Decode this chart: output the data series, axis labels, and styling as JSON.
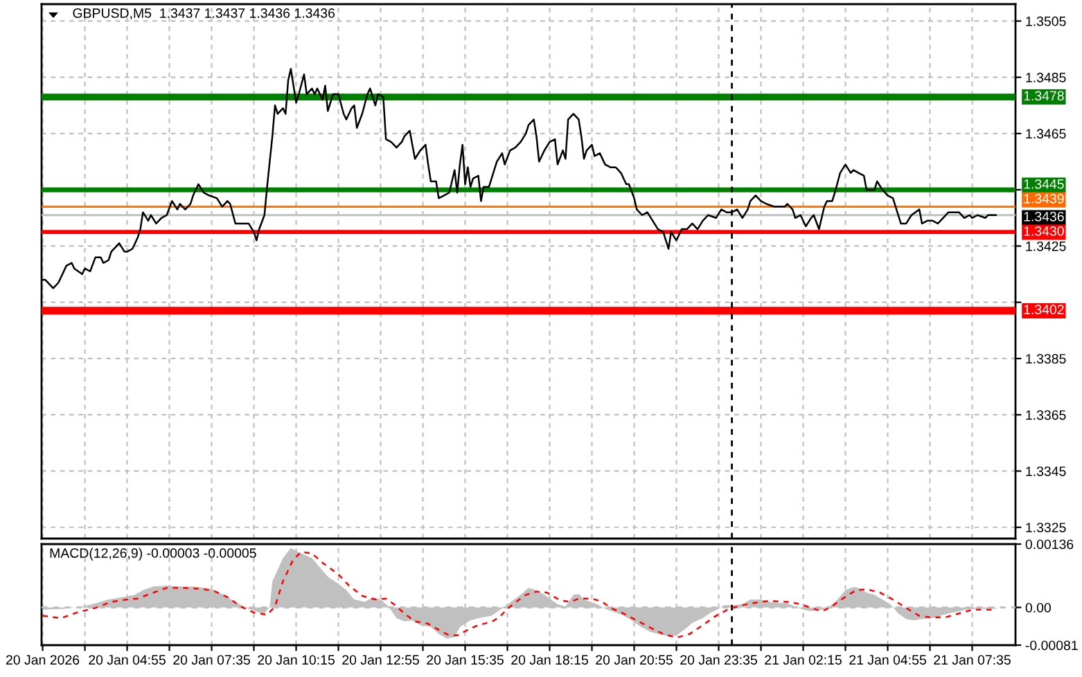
{
  "chart_data": [
    {
      "type": "line",
      "title": "GBPUSD,M5  1.3437 1.3437 1.3436 1.3436",
      "color": "#000000",
      "x": [
        "2026-01-20T02:15",
        "2026-01-20T02:20",
        "2026-01-20T02:35",
        "2026-01-20T02:45",
        "2026-01-20T03:00",
        "2026-01-20T03:10",
        "2026-01-20T03:15",
        "2026-01-20T03:30",
        "2026-01-20T03:35",
        "2026-01-20T03:45",
        "2026-01-20T03:55",
        "2026-01-20T04:05",
        "2026-01-20T04:10",
        "2026-01-20T04:20",
        "2026-01-20T04:25",
        "2026-01-20T04:40",
        "2026-01-20T04:50",
        "2026-01-20T04:55",
        "2026-01-20T05:05",
        "2026-01-20T05:15",
        "2026-01-20T05:20",
        "2026-01-20T05:25",
        "2026-01-20T05:35",
        "2026-01-20T05:40",
        "2026-01-20T05:50",
        "2026-01-20T06:00",
        "2026-01-20T06:10",
        "2026-01-20T06:20",
        "2026-01-20T06:30",
        "2026-01-20T06:35",
        "2026-01-20T06:45",
        "2026-01-20T06:55",
        "2026-01-20T07:00",
        "2026-01-20T07:10",
        "2026-01-20T07:20",
        "2026-01-20T07:30",
        "2026-01-20T07:45",
        "2026-01-20T07:55",
        "2026-01-20T08:05",
        "2026-01-20T08:10",
        "2026-01-20T08:20",
        "2026-01-20T08:30",
        "2026-01-20T08:45",
        "2026-01-20T08:55",
        "2026-01-20T09:00",
        "2026-01-20T09:05",
        "2026-01-20T09:15",
        "2026-01-20T09:20",
        "2026-01-20T09:30",
        "2026-01-20T09:35",
        "2026-01-20T09:40",
        "2026-01-20T09:50",
        "2026-01-20T09:55",
        "2026-01-20T10:00",
        "2026-01-20T10:05",
        "2026-01-20T10:15",
        "2026-01-20T10:20",
        "2026-01-20T10:30",
        "2026-01-20T10:35",
        "2026-01-20T10:45",
        "2026-01-20T10:50",
        "2026-01-20T10:55",
        "2026-01-20T11:05",
        "2026-01-20T11:10",
        "2026-01-20T11:15",
        "2026-01-20T11:20",
        "2026-01-20T11:25",
        "2026-01-20T11:35",
        "2026-01-20T11:45",
        "2026-01-20T11:50",
        "2026-01-20T12:00",
        "2026-01-20T12:05",
        "2026-01-20T12:10",
        "2026-01-20T12:20",
        "2026-01-20T12:30",
        "2026-01-20T12:35",
        "2026-01-20T12:45",
        "2026-01-20T12:50",
        "2026-01-20T13:00",
        "2026-01-20T13:05",
        "2026-01-20T13:15",
        "2026-01-20T13:25",
        "2026-01-20T13:35",
        "2026-01-20T13:40",
        "2026-01-20T13:50",
        "2026-01-20T13:55",
        "2026-01-20T14:00",
        "2026-01-20T14:10",
        "2026-01-20T14:20",
        "2026-01-20T14:25",
        "2026-01-20T14:30",
        "2026-01-20T14:40",
        "2026-01-20T14:45",
        "2026-01-20T14:55",
        "2026-01-20T15:05",
        "2026-01-20T15:15",
        "2026-01-20T15:20",
        "2026-01-20T15:25",
        "2026-01-20T15:30",
        "2026-01-20T15:35",
        "2026-01-20T15:40",
        "2026-01-20T15:45",
        "2026-01-20T15:50",
        "2026-01-20T16:00",
        "2026-01-20T16:05",
        "2026-01-20T16:10",
        "2026-01-20T16:20",
        "2026-01-20T16:30",
        "2026-01-20T16:35",
        "2026-01-20T16:45",
        "2026-01-20T16:50",
        "2026-01-20T17:00",
        "2026-01-20T17:10",
        "2026-01-20T17:20",
        "2026-01-20T17:30",
        "2026-01-20T17:35",
        "2026-01-20T17:45",
        "2026-01-20T17:50",
        "2026-01-20T17:55",
        "2026-01-20T18:05",
        "2026-01-20T18:15",
        "2026-01-20T18:25",
        "2026-01-20T18:30",
        "2026-01-20T18:40",
        "2026-01-20T18:45",
        "2026-01-20T18:50",
        "2026-01-20T19:00",
        "2026-01-20T19:10",
        "2026-01-20T19:15",
        "2026-01-20T19:20",
        "2026-01-20T19:25",
        "2026-01-20T19:35",
        "2026-01-20T19:40",
        "2026-01-20T19:50",
        "2026-01-20T20:00",
        "2026-01-20T20:10",
        "2026-01-20T20:20",
        "2026-01-20T20:30",
        "2026-01-20T20:40",
        "2026-01-20T20:45",
        "2026-01-20T20:55",
        "2026-01-20T21:00",
        "2026-01-20T21:10",
        "2026-01-20T21:20",
        "2026-01-20T21:30",
        "2026-01-20T21:40",
        "2026-01-20T21:50",
        "2026-01-20T22:00",
        "2026-01-20T22:05",
        "2026-01-20T22:15",
        "2026-01-20T22:25",
        "2026-01-20T22:35",
        "2026-01-20T22:45",
        "2026-01-20T22:55",
        "2026-01-20T23:05",
        "2026-01-20T23:15",
        "2026-01-20T23:30",
        "2026-01-20T23:40",
        "2026-01-20T23:50",
        "2026-01-21T00:00",
        "2026-01-21T00:10",
        "2026-01-21T00:20",
        "2026-01-21T00:30",
        "2026-01-21T00:35",
        "2026-01-21T00:45",
        "2026-01-21T00:55",
        "2026-01-21T01:05",
        "2026-01-21T01:20",
        "2026-01-21T01:40",
        "2026-01-21T01:45",
        "2026-01-21T01:55",
        "2026-01-21T02:00",
        "2026-01-21T02:10",
        "2026-01-21T02:20",
        "2026-01-21T02:30",
        "2026-01-21T02:35",
        "2026-01-21T02:45",
        "2026-01-21T02:55",
        "2026-01-21T03:00",
        "2026-01-21T03:10",
        "2026-01-21T03:15",
        "2026-01-21T03:25",
        "2026-01-21T03:35",
        "2026-01-21T03:45",
        "2026-01-21T03:50",
        "2026-01-21T04:00",
        "2026-01-21T04:10",
        "2026-01-21T04:15",
        "2026-01-21T04:30",
        "2026-01-21T04:35",
        "2026-01-21T04:45",
        "2026-01-21T04:55",
        "2026-01-21T05:05",
        "2026-01-21T05:10",
        "2026-01-21T05:20",
        "2026-01-21T05:30",
        "2026-01-21T05:40",
        "2026-01-21T05:55",
        "2026-01-21T06:00",
        "2026-01-21T06:10",
        "2026-01-21T06:20",
        "2026-01-21T06:30",
        "2026-01-21T06:40",
        "2026-01-21T06:50",
        "2026-01-21T07:05",
        "2026-01-21T07:10",
        "2026-01-21T07:20",
        "2026-01-21T07:30",
        "2026-01-21T07:35",
        "2026-01-21T07:45",
        "2026-01-21T08:00",
        "2026-01-21T08:05",
        "2026-01-21T08:15",
        "2026-01-21T08:20"
      ],
      "values": [
        1.3413,
        1.3413,
        1.341,
        1.3412,
        1.3418,
        1.3419,
        1.3417,
        1.3415,
        1.3417,
        1.3416,
        1.3421,
        1.3421,
        1.3419,
        1.342,
        1.3423,
        1.3426,
        1.3423,
        1.3423,
        1.3424,
        1.3428,
        1.3431,
        1.3437,
        1.3434,
        1.3436,
        1.3433,
        1.3435,
        1.3436,
        1.3441,
        1.3438,
        1.344,
        1.3438,
        1.344,
        1.3443,
        1.3447,
        1.3444,
        1.3443,
        1.3442,
        1.3439,
        1.3441,
        1.344,
        1.3433,
        1.3433,
        1.3433,
        1.343,
        1.3427,
        1.3431,
        1.3436,
        1.3446,
        1.3464,
        1.3475,
        1.3472,
        1.3474,
        1.3472,
        1.3484,
        1.3488,
        1.3476,
        1.3479,
        1.3486,
        1.3479,
        1.3481,
        1.3479,
        1.3481,
        1.3477,
        1.3482,
        1.3473,
        1.3476,
        1.3479,
        1.3479,
        1.3472,
        1.347,
        1.3474,
        1.3475,
        1.3467,
        1.3472,
        1.3479,
        1.3481,
        1.3475,
        1.3479,
        1.3478,
        1.3463,
        1.3462,
        1.346,
        1.3462,
        1.3464,
        1.3466,
        1.3461,
        1.3456,
        1.3459,
        1.3461,
        1.3454,
        1.3448,
        1.3448,
        1.3442,
        1.3443,
        1.3444,
        1.3452,
        1.3444,
        1.3454,
        1.3461,
        1.3447,
        1.3453,
        1.3446,
        1.3449,
        1.345,
        1.3441,
        1.3446,
        1.3446,
        1.3452,
        1.3455,
        1.3458,
        1.3454,
        1.3459,
        1.346,
        1.3462,
        1.3465,
        1.3468,
        1.347,
        1.3464,
        1.3455,
        1.3459,
        1.3462,
        1.3463,
        1.3454,
        1.3459,
        1.3456,
        1.347,
        1.3472,
        1.347,
        1.3464,
        1.3456,
        1.3459,
        1.3461,
        1.3457,
        1.3458,
        1.3454,
        1.3453,
        1.3453,
        1.3451,
        1.3447,
        1.3447,
        1.3442,
        1.3438,
        1.3436,
        1.3437,
        1.3434,
        1.3431,
        1.343,
        1.3424,
        1.343,
        1.3427,
        1.3431,
        1.3431,
        1.3433,
        1.3431,
        1.3434,
        1.3436,
        1.3435,
        1.3438,
        1.3437,
        1.3437,
        1.3438,
        1.3435,
        1.3438,
        1.3441,
        1.3443,
        1.3441,
        1.344,
        1.3439,
        1.3439,
        1.344,
        1.3438,
        1.3435,
        1.3436,
        1.3432,
        1.3435,
        1.3436,
        1.3431,
        1.3439,
        1.3441,
        1.3441,
        1.3444,
        1.3451,
        1.3454,
        1.3451,
        1.3452,
        1.3451,
        1.345,
        1.3445,
        1.3445,
        1.3448,
        1.3445,
        1.3443,
        1.3442,
        1.3439,
        1.3433,
        1.3433,
        1.3436,
        1.3438,
        1.3433,
        1.3434,
        1.3434,
        1.3433,
        1.3435,
        1.3437,
        1.3437,
        1.3437,
        1.3435,
        1.3436,
        1.3435,
        1.3436,
        1.3435,
        1.3436,
        1.3436,
        1.3436
      ],
      "xlim": [
        "2026-01-20T02:13",
        "2026-01-21T08:57"
      ],
      "xticks": [
        {
          "value": "2026-01-20T02:15",
          "label": null
        },
        {
          "value": "2026-01-20T03:35",
          "label": null
        },
        {
          "value": "2026-01-20T04:55",
          "label": null
        },
        {
          "value": "2026-01-20T06:15",
          "label": null
        },
        {
          "value": "2026-01-20T07:35",
          "label": null
        },
        {
          "value": "2026-01-20T08:55",
          "label": null
        },
        {
          "value": "2026-01-20T10:15",
          "label": null
        },
        {
          "value": "2026-01-20T11:35",
          "label": null
        },
        {
          "value": "2026-01-20T12:55",
          "label": null
        },
        {
          "value": "2026-01-20T14:15",
          "label": null
        },
        {
          "value": "2026-01-20T15:35",
          "label": null
        },
        {
          "value": "2026-01-20T16:55",
          "label": null
        },
        {
          "value": "2026-01-20T18:15",
          "label": null
        },
        {
          "value": "2026-01-20T19:35",
          "label": null
        },
        {
          "value": "2026-01-20T20:55",
          "label": null
        },
        {
          "value": "2026-01-20T22:15",
          "label": null
        },
        {
          "value": "2026-01-20T23:35",
          "label": null
        },
        {
          "value": "2026-01-21T00:55",
          "label": null
        },
        {
          "value": "2026-01-21T02:15",
          "label": null
        },
        {
          "value": "2026-01-21T03:35",
          "label": null
        },
        {
          "value": "2026-01-21T04:55",
          "label": null
        },
        {
          "value": "2026-01-21T06:15",
          "label": null
        },
        {
          "value": "2026-01-21T07:35",
          "label": null
        }
      ],
      "ylim": [
        1.3321,
        1.3511
      ],
      "yticks": [
        1.3505,
        1.3485,
        1.3465,
        {
          "value": 1.3445,
          "label": null
        },
        1.3425,
        {
          "value": 1.3405,
          "label": null
        },
        1.3385,
        1.3365,
        1.3345,
        1.3325
      ],
      "grid": true,
      "tick_labels": "y",
      "ref_lines": [
        {
          "axis": "y",
          "value": 1.3478,
          "label": "1.3478",
          "color": "#008000"
        },
        {
          "axis": "y",
          "value": 1.3445,
          "label": "1.3445",
          "color": "#008000"
        },
        {
          "axis": "y",
          "value": 1.3439,
          "label": "1.3439",
          "color": "#ff6a00"
        },
        {
          "axis": "y",
          "value": 1.3436,
          "label": "1.3436",
          "color": "#c0c0c0"
        },
        {
          "axis": "y",
          "value": 1.343,
          "label": "1.3430",
          "color": "#ff0000"
        },
        {
          "axis": "y",
          "value": 1.3402,
          "label": "1.3402",
          "color": "#ff0000"
        },
        {
          "axis": "x",
          "value": "2026-01-21T00:00",
          "color": "#000000",
          "line_style": "dashed"
        }
      ]
    },
    {
      "type": "area",
      "title": "MACD(12,26,9) -0.00003 -0.00005",
      "series": [
        {
          "color": "#c0c0c0",
          "x": [
            "2026-01-20T02:15",
            "2026-01-20T02:55",
            "2026-01-20T03:30",
            "2026-01-20T03:55",
            "2026-01-20T04:20",
            "2026-01-20T04:45",
            "2026-01-20T05:10",
            "2026-01-20T05:25",
            "2026-01-20T05:45",
            "2026-01-20T06:10",
            "2026-01-20T06:35",
            "2026-01-20T07:00",
            "2026-01-20T07:25",
            "2026-01-20T07:40",
            "2026-01-20T07:55",
            "2026-01-20T08:20",
            "2026-01-20T08:45",
            "2026-01-20T09:05",
            "2026-01-20T09:15",
            "2026-01-20T09:25",
            "2026-01-20T09:30",
            "2026-01-20T09:40",
            "2026-01-20T09:50",
            "2026-01-20T10:05",
            "2026-01-20T10:15",
            "2026-01-20T10:25",
            "2026-01-20T10:45",
            "2026-01-20T11:00",
            "2026-01-20T11:15",
            "2026-01-20T11:35",
            "2026-01-20T11:50",
            "2026-01-20T12:05",
            "2026-01-20T12:25",
            "2026-01-20T12:40",
            "2026-01-20T12:55",
            "2026-01-20T13:10",
            "2026-01-20T13:25",
            "2026-01-20T13:40",
            "2026-01-20T13:55",
            "2026-01-20T14:10",
            "2026-01-20T14:30",
            "2026-01-20T14:45",
            "2026-01-20T15:00",
            "2026-01-20T15:15",
            "2026-01-20T15:25",
            "2026-01-20T15:45",
            "2026-01-20T16:00",
            "2026-01-20T16:25",
            "2026-01-20T16:50",
            "2026-01-20T17:05",
            "2026-01-20T17:20",
            "2026-01-20T17:35",
            "2026-01-20T17:50",
            "2026-01-20T18:05",
            "2026-01-20T18:30",
            "2026-01-20T18:45",
            "2026-01-20T19:00",
            "2026-01-20T19:10",
            "2026-01-20T19:20",
            "2026-01-20T19:45",
            "2026-01-20T20:00",
            "2026-01-20T20:20",
            "2026-01-20T20:35",
            "2026-01-20T20:50",
            "2026-01-20T21:10",
            "2026-01-20T21:25",
            "2026-01-20T21:40",
            "2026-01-20T22:00",
            "2026-01-20T22:15",
            "2026-01-20T22:30",
            "2026-01-20T22:45",
            "2026-01-20T23:05",
            "2026-01-20T23:20",
            "2026-01-20T23:35",
            "2026-01-20T23:45",
            "2026-01-21T00:05",
            "2026-01-21T00:20",
            "2026-01-21T00:35",
            "2026-01-21T00:55",
            "2026-01-21T01:10",
            "2026-01-21T01:25",
            "2026-01-21T01:45",
            "2026-01-21T02:00",
            "2026-01-21T02:15",
            "2026-01-21T02:30",
            "2026-01-21T02:50",
            "2026-01-21T03:05",
            "2026-01-21T03:20",
            "2026-01-21T03:35",
            "2026-01-21T03:50",
            "2026-01-21T04:00",
            "2026-01-21T04:15",
            "2026-01-21T04:30",
            "2026-01-21T04:45",
            "2026-01-21T05:00",
            "2026-01-21T05:15",
            "2026-01-21T05:30",
            "2026-01-21T05:45",
            "2026-01-21T06:00",
            "2026-01-21T06:20",
            "2026-01-21T06:35",
            "2026-01-21T06:50",
            "2026-01-21T07:10",
            "2026-01-21T07:25",
            "2026-01-21T07:40",
            "2026-01-21T08:00",
            "2026-01-21T08:20"
          ],
          "values": [
            -5e-05,
            -3e-05,
            2e-05,
            9e-05,
            0.00017,
            0.00022,
            0.00027,
            0.00037,
            0.00045,
            0.00047,
            0.00045,
            0.00045,
            0.00042,
            0.00037,
            0.00029,
            0.00012,
            -3e-05,
            -0.00011,
            -0.00013,
            2e-05,
            0.00056,
            0.00081,
            0.00106,
            0.00128,
            0.00121,
            0.00116,
            0.00106,
            0.00086,
            0.00066,
            0.00051,
            0.00037,
            0.00017,
            0.00012,
            0.00022,
            0.00017,
            2e-05,
            -0.00023,
            -0.0003,
            -0.00028,
            -0.00038,
            -0.00042,
            -0.00057,
            -0.00067,
            -0.00064,
            -0.00042,
            -0.00028,
            -0.00023,
            -0.00018,
            2e-05,
            0.00015,
            0.00027,
            0.00042,
            0.00037,
            0.00027,
            7e-05,
            2e-05,
            0.00027,
            0.00029,
            0.00017,
            7e-05,
            -3e-05,
            -0.00011,
            -0.00018,
            -0.00028,
            -0.00043,
            -0.00052,
            -0.00057,
            -0.00062,
            -0.0006,
            -0.00048,
            -0.00033,
            -0.00023,
            -0.00011,
            -3e-05,
            5e-05,
            5e-05,
            7e-05,
            0.00017,
            0.00017,
            0.00012,
            0.0001,
            9e-05,
            2e-05,
            -5e-05,
            -8e-05,
            -5e-05,
            2e-05,
            0.00017,
            0.00037,
            0.00044,
            0.00042,
            0.00032,
            0.00027,
            0.00017,
            7e-05,
            -0.00013,
            -0.00025,
            -0.00028,
            -0.00025,
            -0.00023,
            -0.00018,
            -0.00013,
            -8e-05,
            -5e-05,
            -3e-05,
            -3e-05,
            -3e-05
          ]
        },
        {
          "type": "line",
          "color": "#ff0000",
          "line_style": "dashed",
          "x": [
            "2026-01-20T02:15",
            "2026-01-20T02:50",
            "2026-01-20T03:20",
            "2026-01-20T03:55",
            "2026-01-20T04:25",
            "2026-01-20T04:55",
            "2026-01-20T05:15",
            "2026-01-20T05:45",
            "2026-01-20T06:10",
            "2026-01-20T06:40",
            "2026-01-20T07:15",
            "2026-01-20T07:40",
            "2026-01-20T08:05",
            "2026-01-20T08:30",
            "2026-01-20T08:55",
            "2026-01-20T09:20",
            "2026-01-20T09:35",
            "2026-01-20T09:50",
            "2026-01-20T10:10",
            "2026-01-20T10:25",
            "2026-01-20T10:45",
            "2026-01-20T11:05",
            "2026-01-20T11:35",
            "2026-01-20T11:55",
            "2026-01-20T12:20",
            "2026-01-20T12:45",
            "2026-01-20T13:05",
            "2026-01-20T13:20",
            "2026-01-20T13:40",
            "2026-01-20T14:00",
            "2026-01-20T14:25",
            "2026-01-20T14:45",
            "2026-01-20T15:05",
            "2026-01-20T15:20",
            "2026-01-20T15:40",
            "2026-01-20T16:00",
            "2026-01-20T16:25",
            "2026-01-20T16:40",
            "2026-01-20T16:55",
            "2026-01-20T17:15",
            "2026-01-20T17:30",
            "2026-01-20T17:50",
            "2026-01-20T18:10",
            "2026-01-20T18:35",
            "2026-01-20T18:55",
            "2026-01-20T19:10",
            "2026-01-20T19:35",
            "2026-01-20T19:55",
            "2026-01-20T20:10",
            "2026-01-20T20:35",
            "2026-01-20T21:00",
            "2026-01-20T21:25",
            "2026-01-20T21:50",
            "2026-01-20T22:15",
            "2026-01-20T22:40",
            "2026-01-20T23:05",
            "2026-01-20T23:30",
            "2026-01-20T23:55",
            "2026-01-21T00:20",
            "2026-01-21T00:45",
            "2026-01-21T01:10",
            "2026-01-21T01:45",
            "2026-01-21T02:10",
            "2026-01-21T02:35",
            "2026-01-21T02:50",
            "2026-01-21T03:05",
            "2026-01-21T03:30",
            "2026-01-21T03:55",
            "2026-01-21T04:15",
            "2026-01-21T04:40",
            "2026-01-21T05:05",
            "2026-01-21T05:30",
            "2026-01-21T05:55",
            "2026-01-21T06:15",
            "2026-01-21T06:45",
            "2026-01-21T07:10",
            "2026-01-21T07:35",
            "2026-01-21T08:00",
            "2026-01-21T08:20"
          ],
          "values": [
            -0.00018,
            -0.00023,
            -0.00011,
            -1e-05,
            0.00012,
            0.00017,
            0.00019,
            0.00032,
            0.00042,
            0.00042,
            0.0004,
            0.00035,
            0.00022,
            2e-05,
            -0.00011,
            -0.00016,
            2e-05,
            0.00056,
            0.00104,
            0.00119,
            0.00116,
            0.00096,
            0.00071,
            0.00047,
            0.00025,
            0.00017,
            0.00019,
            7e-05,
            -0.00013,
            -0.0003,
            -0.00035,
            -0.00048,
            -0.0006,
            -0.0006,
            -0.00048,
            -0.00038,
            -0.00031,
            -0.00021,
            -3e-05,
            0.00015,
            0.00027,
            0.00034,
            0.00032,
            0.00015,
            0.00012,
            0.00019,
            0.00019,
            0.00012,
            -1e-05,
            -0.00013,
            -0.00028,
            -0.00043,
            -0.00057,
            -0.00065,
            -0.00057,
            -0.00038,
            -0.00018,
            -3e-05,
            5e-05,
            0.0001,
            0.00014,
            0.00012,
            7e-05,
            -3e-05,
            -8e-05,
            -1e-05,
            0.00019,
            0.00037,
            0.00039,
            0.00032,
            0.00017,
            -1e-05,
            -0.00018,
            -0.00021,
            -0.00021,
            -0.00013,
            -5e-05,
            -5e-05,
            -5e-05
          ]
        }
      ],
      "xlim": [
        "2026-01-20T02:13",
        "2026-01-21T08:57"
      ],
      "xticks": [
        {
          "value": "2026-01-20T02:15",
          "label": "20 Jan 2026"
        },
        {
          "value": "2026-01-20T03:35",
          "label": null
        },
        {
          "value": "2026-01-20T04:55",
          "label": "20 Jan 04:55"
        },
        {
          "value": "2026-01-20T06:15",
          "label": null
        },
        {
          "value": "2026-01-20T07:35",
          "label": "20 Jan 07:35"
        },
        {
          "value": "2026-01-20T08:55",
          "label": null
        },
        {
          "value": "2026-01-20T10:15",
          "label": "20 Jan 10:15"
        },
        {
          "value": "2026-01-20T11:35",
          "label": null
        },
        {
          "value": "2026-01-20T12:55",
          "label": "20 Jan 12:55"
        },
        {
          "value": "2026-01-20T14:15",
          "label": null
        },
        {
          "value": "2026-01-20T15:35",
          "label": "20 Jan 15:35"
        },
        {
          "value": "2026-01-20T16:55",
          "label": null
        },
        {
          "value": "2026-01-20T18:15",
          "label": "20 Jan 18:15"
        },
        {
          "value": "2026-01-20T19:35",
          "label": null
        },
        {
          "value": "2026-01-20T20:55",
          "label": "20 Jan 20:55"
        },
        {
          "value": "2026-01-20T22:15",
          "label": null
        },
        {
          "value": "2026-01-20T23:35",
          "label": "20 Jan 23:35"
        },
        {
          "value": "2026-01-21T00:55",
          "label": null
        },
        {
          "value": "2026-01-21T02:15",
          "label": "21 Jan 02:15"
        },
        {
          "value": "2026-01-21T03:35",
          "label": null
        },
        {
          "value": "2026-01-21T04:55",
          "label": "21 Jan 04:55"
        },
        {
          "value": "2026-01-21T06:15",
          "label": null
        },
        {
          "value": "2026-01-21T07:35",
          "label": "21 Jan 07:35"
        }
      ],
      "ylim": [
        -0.00081,
        0.00136
      ],
      "yticks": [
        {
          "value": 0.00136,
          "label": "0.00136"
        },
        {
          "value": 0,
          "label": "0.00"
        },
        {
          "value": -0.00081,
          "label": "-0.00081"
        }
      ],
      "grid": "x",
      "ref_lines": [
        {
          "axis": "y",
          "value": 0,
          "color": "#c0c0c0",
          "line_style": "dashed"
        },
        {
          "axis": "x",
          "value": "2026-01-21T00:00",
          "color": "#000000",
          "line_style": "dashed"
        }
      ]
    }
  ]
}
